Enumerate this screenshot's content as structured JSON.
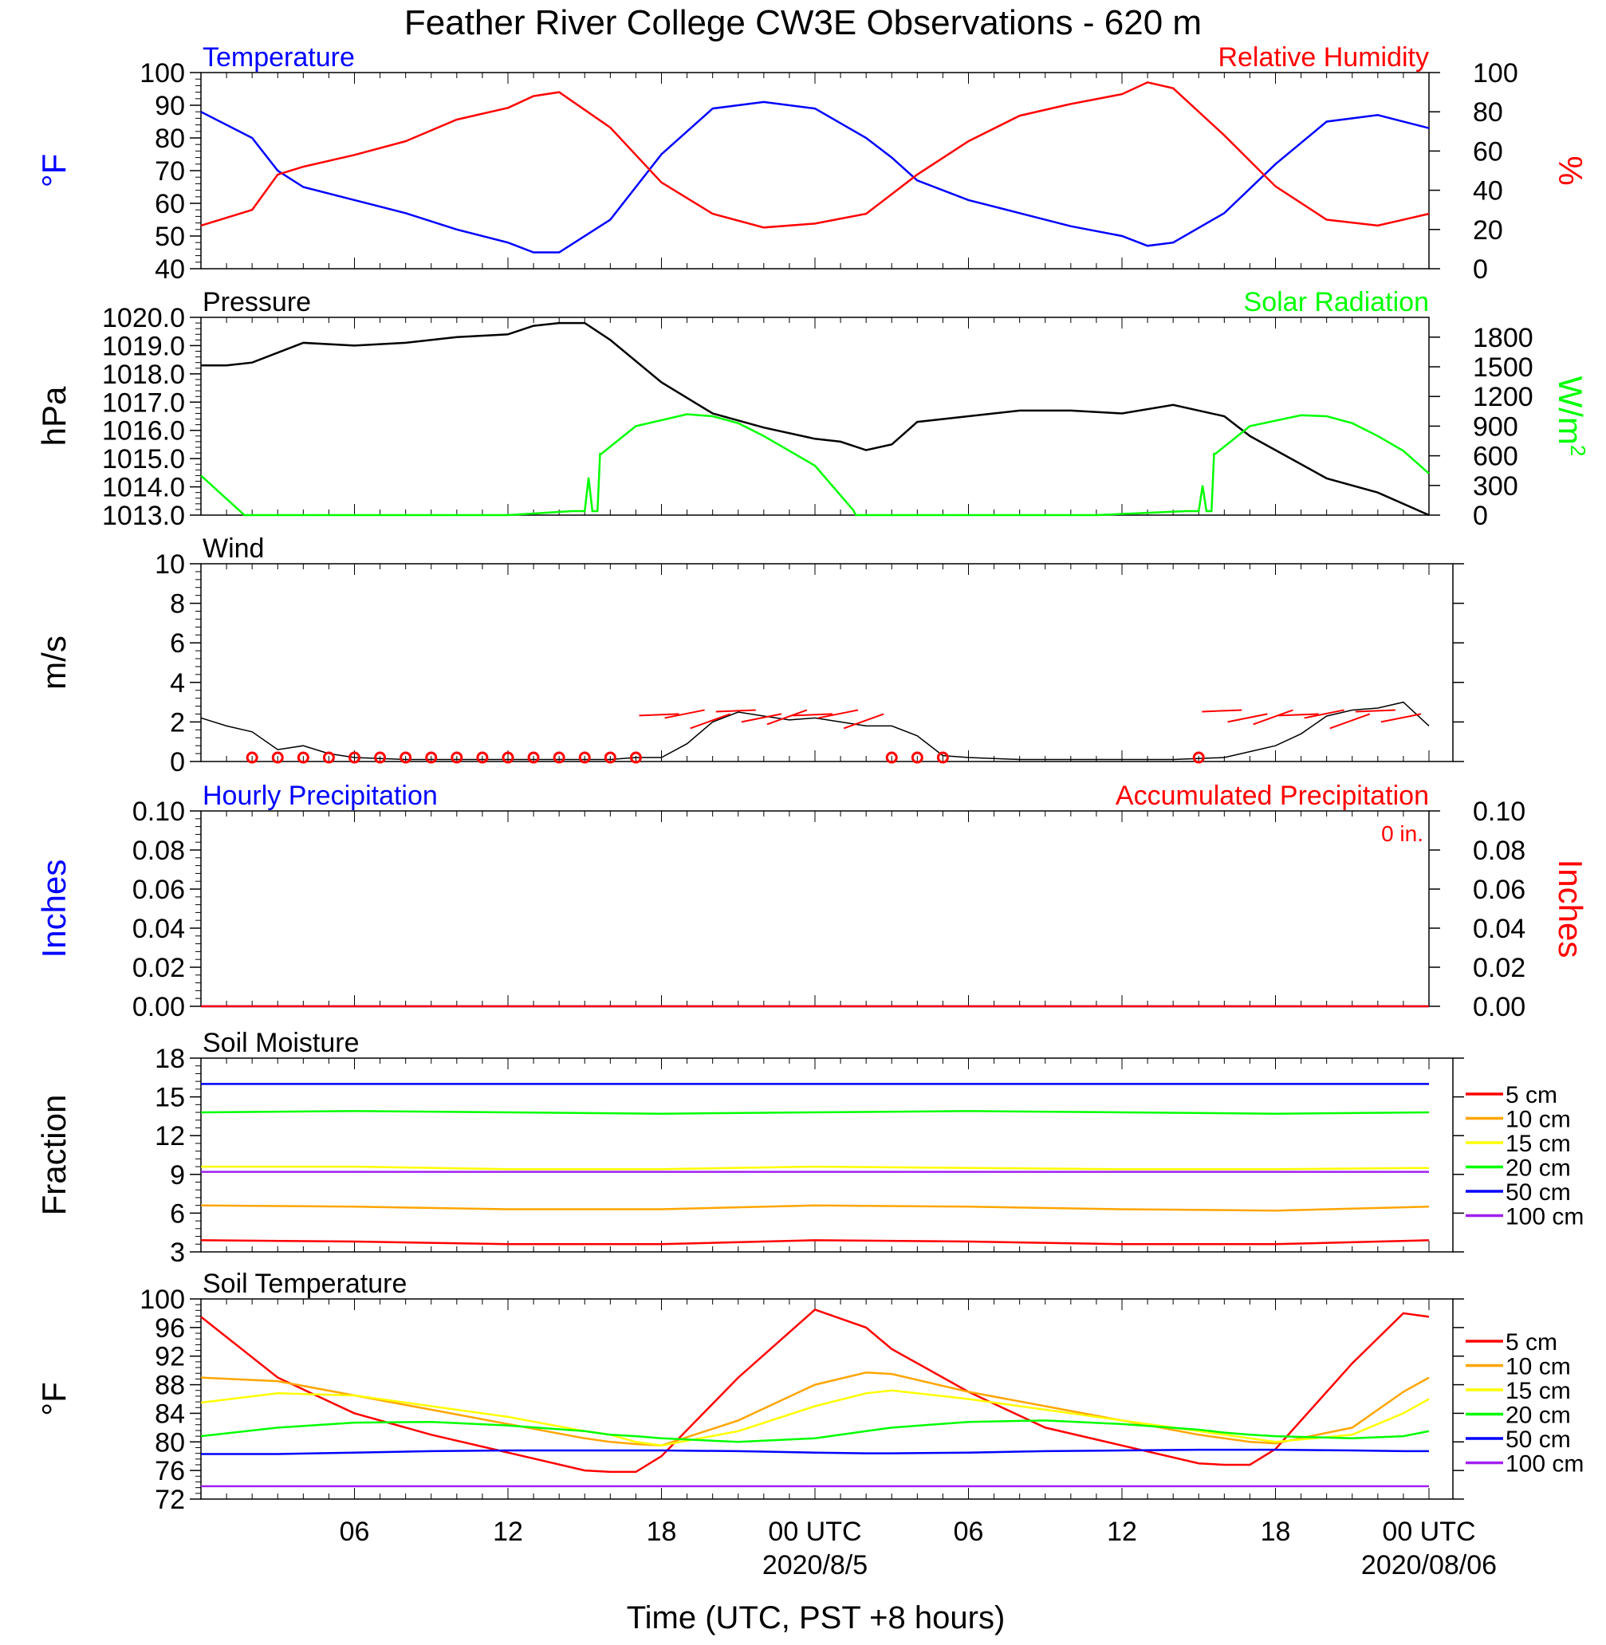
{
  "title": "Feather River College CW3E Observations - 620 m",
  "xlabel": "Time (UTC, PST +8 hours)",
  "x_tick_labels": [
    "06",
    "12",
    "18",
    "00 UTC",
    "06",
    "12",
    "18",
    "00 UTC"
  ],
  "x_date_labels": [
    {
      "text": "2020/8/5",
      "at_tick": 3
    },
    {
      "text": "2020/08/06",
      "at_tick": 7
    }
  ],
  "colors": {
    "blue": "#0000ff",
    "red": "#ff0000",
    "green": "#00ff00",
    "black": "#000000",
    "orange": "#ffa500",
    "yellow": "#ffff00",
    "purple": "#a020f0"
  },
  "chart_data": [
    {
      "id": "temp_rh",
      "type": "line",
      "title_left": "Temperature",
      "title_right": "Relative Humidity",
      "ylabel_left": "°F",
      "ylabel_right": "%",
      "ylim_left": [
        40,
        100
      ],
      "yticks_left": [
        "40",
        "50",
        "60",
        "70",
        "80",
        "90",
        "100"
      ],
      "ylim_right": [
        0,
        100
      ],
      "yticks_right": [
        "0",
        "20",
        "40",
        "60",
        "80",
        "100"
      ],
      "x_hours": [
        0,
        2,
        3,
        4,
        6,
        8,
        10,
        12,
        13,
        14,
        16,
        18,
        20,
        22,
        24,
        26,
        27,
        28,
        30,
        32,
        34,
        36,
        37,
        38,
        40,
        42,
        44,
        46,
        48
      ],
      "series": [
        {
          "name": "Temperature",
          "color": "#0000ff",
          "axis": "left",
          "values": [
            88,
            80,
            70,
            65,
            61,
            57,
            52,
            48,
            45,
            45,
            55,
            75,
            89,
            91,
            89,
            80,
            74,
            67,
            61,
            57,
            53,
            50,
            47,
            48,
            57,
            72,
            85,
            87,
            83
          ]
        },
        {
          "name": "Relative Humidity",
          "color": "#ff0000",
          "axis": "right",
          "values": [
            22,
            30,
            48,
            52,
            58,
            65,
            76,
            82,
            88,
            90,
            72,
            44,
            28,
            21,
            23,
            28,
            38,
            48,
            65,
            78,
            84,
            89,
            95,
            92,
            68,
            42,
            25,
            22,
            28
          ]
        }
      ]
    },
    {
      "id": "pressure_solar",
      "type": "line",
      "title_left": "Pressure",
      "title_right": "Solar Radiation",
      "ylabel_left": "hPa",
      "ylabel_right": "W/m",
      "ylabel_right_sup": "2",
      "ylim_left": [
        1013,
        1020
      ],
      "yticks_left": [
        "1013.0",
        "1014.0",
        "1015.0",
        "1016.0",
        "1017.0",
        "1018.0",
        "1019.0",
        "1020.0"
      ],
      "ylim_right": [
        0,
        2000
      ],
      "yticks_right": [
        "0",
        "300",
        "600",
        "900",
        "1200",
        "1500",
        "1800"
      ],
      "series": [
        {
          "name": "Pressure",
          "color": "#000000",
          "axis": "left",
          "x": [
            0,
            1,
            2,
            4,
            6,
            8,
            10,
            12,
            13,
            14,
            15,
            16,
            18,
            20,
            22,
            24,
            25,
            26,
            27,
            28,
            30,
            32,
            34,
            36,
            38,
            40,
            41,
            42,
            44,
            46,
            48
          ],
          "values": [
            1018.3,
            1018.3,
            1018.4,
            1019.1,
            1019.0,
            1019.1,
            1019.3,
            1019.4,
            1019.7,
            1019.8,
            1019.8,
            1019.2,
            1017.7,
            1016.6,
            1016.1,
            1015.7,
            1015.6,
            1015.3,
            1015.5,
            1016.3,
            1016.5,
            1016.7,
            1016.7,
            1016.6,
            1016.9,
            1016.5,
            1015.8,
            1015.3,
            1014.3,
            1013.8,
            1013.0
          ]
        },
        {
          "name": "Solar Radiation",
          "color": "#00ff00",
          "axis": "right",
          "x": [
            0,
            1.7,
            2,
            12,
            14.5,
            15,
            15.15,
            15.3,
            15.5,
            15.6,
            15.65,
            17,
            19,
            20,
            21,
            22,
            24,
            25.5,
            25.6,
            26,
            35,
            38.5,
            39,
            39.15,
            39.3,
            39.5,
            39.6,
            39.65,
            41,
            43,
            44,
            45,
            46,
            47,
            48
          ],
          "values": [
            400,
            0,
            0,
            0,
            40,
            40,
            380,
            40,
            40,
            620,
            620,
            900,
            1020,
            1000,
            930,
            800,
            500,
            50,
            0,
            0,
            0,
            40,
            40,
            300,
            40,
            40,
            620,
            620,
            900,
            1010,
            1000,
            930,
            800,
            650,
            420
          ]
        }
      ]
    },
    {
      "id": "wind",
      "type": "line",
      "title_left": "Wind",
      "ylabel_left": "m/s",
      "ylim_left": [
        0,
        10
      ],
      "yticks_left": [
        "0",
        "2",
        "4",
        "6",
        "8",
        "10"
      ],
      "x_hours": [
        0,
        1,
        2,
        3,
        4,
        5,
        6,
        8,
        10,
        12,
        14,
        16,
        17,
        18,
        19,
        20,
        21,
        22,
        23,
        24,
        25,
        26,
        27,
        28,
        29,
        30,
        32,
        34,
        36,
        38,
        40,
        41,
        42,
        43,
        44,
        45,
        46,
        47,
        48
      ],
      "series": [
        {
          "name": "Wind",
          "color": "#000000",
          "values": [
            2.2,
            1.8,
            1.5,
            0.6,
            0.8,
            0.4,
            0.2,
            0.1,
            0.1,
            0.1,
            0.1,
            0.1,
            0.2,
            0.2,
            0.9,
            2.0,
            2.5,
            2.3,
            2.1,
            2.2,
            2.0,
            1.8,
            1.8,
            1.3,
            0.3,
            0.2,
            0.1,
            0.1,
            0.1,
            0.1,
            0.2,
            0.5,
            0.8,
            1.4,
            2.3,
            2.6,
            2.7,
            3.0,
            1.8
          ]
        }
      ],
      "markers": {
        "color": "#ff0000",
        "x_hours": [
          2,
          3,
          4,
          5,
          6,
          7,
          8,
          9,
          10,
          11,
          12,
          13,
          14,
          15,
          16,
          17,
          27,
          28,
          29,
          39
        ]
      },
      "barbs": {
        "color": "#ff0000",
        "x_hours": [
          18,
          19,
          20,
          21,
          22,
          23,
          24,
          25,
          26,
          40,
          41,
          42,
          43,
          44,
          45,
          46,
          47
        ]
      }
    },
    {
      "id": "precip",
      "type": "line",
      "title_left": "Hourly Precipitation",
      "title_right": "Accumulated Precipitation",
      "annotation": "0 in.",
      "ylabel_left": "Inches",
      "ylabel_right": "Inches",
      "ylim_left": [
        0,
        0.1
      ],
      "yticks_left": [
        "0.00",
        "0.02",
        "0.04",
        "0.06",
        "0.08",
        "0.10"
      ],
      "ylim_right": [
        0,
        0.1
      ],
      "yticks_right": [
        "0.00",
        "0.02",
        "0.04",
        "0.06",
        "0.08",
        "0.10"
      ],
      "series": [
        {
          "name": "Hourly Precipitation",
          "color": "#0000ff",
          "x": [
            0,
            48
          ],
          "values": [
            0,
            0
          ]
        },
        {
          "name": "Accumulated Precipitation",
          "color": "#ff0000",
          "x": [
            0,
            48
          ],
          "values": [
            0,
            0
          ]
        }
      ]
    },
    {
      "id": "soil_moisture",
      "type": "line",
      "title_left": "Soil Moisture",
      "ylabel_left": "Fraction",
      "ylim_left": [
        3,
        18
      ],
      "yticks_left": [
        "3",
        "6",
        "9",
        "12",
        "15",
        "18"
      ],
      "x_hours": [
        0,
        6,
        12,
        18,
        24,
        30,
        36,
        42,
        48
      ],
      "series": [
        {
          "name": "5 cm",
          "color": "#ff0000",
          "values": [
            3.9,
            3.8,
            3.6,
            3.6,
            3.9,
            3.8,
            3.6,
            3.6,
            3.9
          ]
        },
        {
          "name": "10 cm",
          "color": "#ffa500",
          "values": [
            6.6,
            6.5,
            6.3,
            6.3,
            6.6,
            6.5,
            6.3,
            6.2,
            6.5
          ]
        },
        {
          "name": "15 cm",
          "color": "#ffff00",
          "values": [
            9.6,
            9.6,
            9.4,
            9.4,
            9.6,
            9.5,
            9.4,
            9.4,
            9.5
          ]
        },
        {
          "name": "20 cm",
          "color": "#00ff00",
          "values": [
            13.8,
            13.9,
            13.8,
            13.7,
            13.8,
            13.9,
            13.8,
            13.7,
            13.8
          ]
        },
        {
          "name": "50 cm",
          "color": "#0000ff",
          "values": [
            16.0,
            16.0,
            16.0,
            16.0,
            16.0,
            16.0,
            16.0,
            16.0,
            16.0
          ]
        },
        {
          "name": "100 cm",
          "color": "#a020f0",
          "values": [
            9.2,
            9.2,
            9.2,
            9.2,
            9.2,
            9.2,
            9.2,
            9.2,
            9.2
          ]
        }
      ],
      "legend": [
        "5 cm",
        "10 cm",
        "15 cm",
        "20 cm",
        "50 cm",
        "100 cm"
      ]
    },
    {
      "id": "soil_temp",
      "type": "line",
      "title_left": "Soil Temperature",
      "ylabel_left": "°F",
      "ylim_left": [
        72,
        100
      ],
      "yticks_left": [
        "72",
        "76",
        "80",
        "84",
        "88",
        "92",
        "96",
        "100"
      ],
      "x_hours": [
        0,
        3,
        6,
        9,
        12,
        15,
        16,
        17,
        18,
        21,
        24,
        26,
        27,
        30,
        33,
        36,
        39,
        40,
        41,
        42,
        45,
        47,
        48
      ],
      "series": [
        {
          "name": "5 cm",
          "color": "#ff0000",
          "values": [
            97.5,
            89,
            84,
            81,
            78.5,
            76,
            75.8,
            75.8,
            78,
            89,
            98.5,
            96,
            93,
            87,
            82,
            79.5,
            77,
            76.8,
            76.8,
            79,
            91,
            98,
            97.5
          ]
        },
        {
          "name": "10 cm",
          "color": "#ffa500",
          "values": [
            89,
            88.5,
            86.5,
            84.5,
            82.5,
            80.5,
            80,
            79.7,
            79.5,
            83,
            88,
            89.7,
            89.5,
            87,
            85,
            83,
            81,
            80.5,
            80,
            79.8,
            82,
            87,
            89
          ]
        },
        {
          "name": "15 cm",
          "color": "#ffff00",
          "values": [
            85.5,
            86.8,
            86.5,
            85,
            83.5,
            81.5,
            81,
            80,
            79.5,
            81.5,
            85,
            86.8,
            87.2,
            86,
            84.5,
            83,
            81.5,
            81,
            80.5,
            80,
            81,
            84,
            86
          ]
        },
        {
          "name": "20 cm",
          "color": "#00ff00",
          "values": [
            80.8,
            82,
            82.7,
            82.8,
            82.3,
            81.5,
            81,
            80.8,
            80.5,
            80,
            80.5,
            81.5,
            82,
            82.8,
            83,
            82.5,
            81.7,
            81.3,
            81,
            80.8,
            80.5,
            80.8,
            81.5
          ]
        },
        {
          "name": "50 cm",
          "color": "#0000ff",
          "values": [
            78.3,
            78.3,
            78.5,
            78.7,
            78.8,
            78.8,
            78.8,
            78.8,
            78.8,
            78.7,
            78.5,
            78.4,
            78.4,
            78.5,
            78.7,
            78.8,
            78.9,
            78.9,
            78.9,
            78.9,
            78.8,
            78.7,
            78.7
          ]
        },
        {
          "name": "100 cm",
          "color": "#a020f0",
          "values": [
            73.8,
            73.8,
            73.8,
            73.8,
            73.8,
            73.8,
            73.8,
            73.8,
            73.8,
            73.8,
            73.8,
            73.8,
            73.8,
            73.8,
            73.8,
            73.8,
            73.8,
            73.8,
            73.8,
            73.8,
            73.8,
            73.8,
            73.8
          ]
        }
      ],
      "legend": [
        "5 cm",
        "10 cm",
        "15 cm",
        "20 cm",
        "50 cm",
        "100 cm"
      ]
    }
  ]
}
